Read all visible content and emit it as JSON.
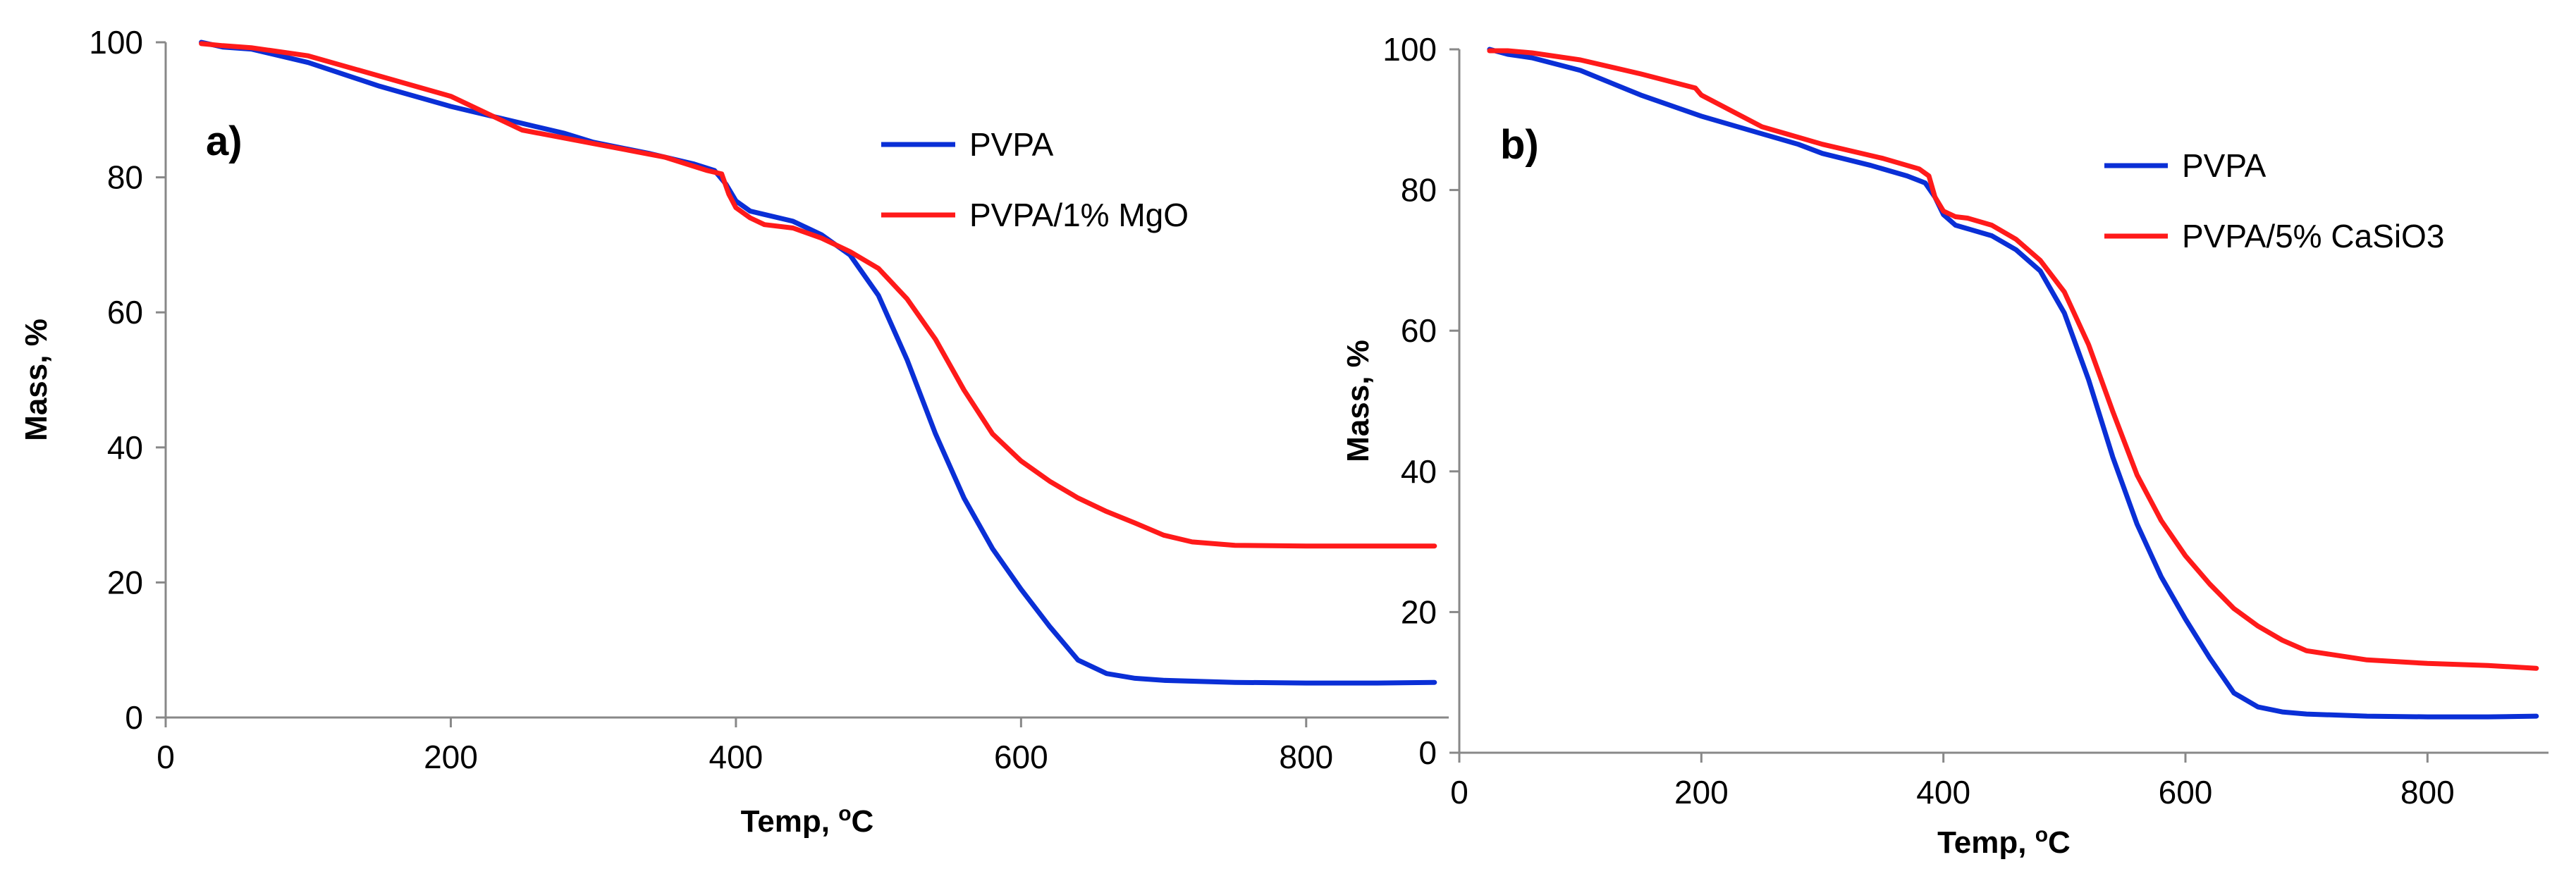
{
  "chart_data": [
    {
      "type": "line",
      "panel_label": "a)",
      "xlabel": "Temp, ",
      "xlabel_sup": "o",
      "xlabel_unit": "C",
      "ylabel": "Mass, %",
      "xlim": [
        0,
        900
      ],
      "ylim": [
        0,
        100
      ],
      "xticks": [
        0,
        200,
        400,
        600,
        800
      ],
      "yticks": [
        0,
        20,
        40,
        60,
        80,
        100
      ],
      "legend_position": "top-right",
      "series": [
        {
          "name": "PVPA",
          "color": "#0A2FD6",
          "x": [
            25,
            40,
            60,
            100,
            150,
            200,
            250,
            280,
            300,
            340,
            370,
            385,
            393,
            400,
            410,
            420,
            440,
            460,
            480,
            500,
            520,
            540,
            560,
            580,
            600,
            620,
            640,
            660,
            680,
            700,
            750,
            800,
            850,
            890
          ],
          "y": [
            100,
            99.3,
            99,
            97,
            93.5,
            90.5,
            88,
            86.5,
            85.2,
            83.5,
            82,
            81,
            79,
            76.5,
            75,
            74.5,
            73.5,
            71.5,
            68.5,
            62.5,
            53,
            42,
            32.5,
            25,
            19,
            13.5,
            8.5,
            6.5,
            5.8,
            5.5,
            5.2,
            5.1,
            5.1,
            5.2
          ]
        },
        {
          "name": "PVPA/1% MgO",
          "color": "#FF1A1A",
          "x": [
            25,
            40,
            60,
            100,
            150,
            200,
            250,
            300,
            350,
            380,
            390,
            395,
            400,
            410,
            420,
            440,
            460,
            480,
            500,
            520,
            540,
            560,
            580,
            600,
            620,
            640,
            660,
            680,
            700,
            720,
            750,
            800,
            850,
            890
          ],
          "y": [
            99.8,
            99.5,
            99.2,
            98,
            95,
            92,
            87,
            85,
            83,
            81,
            80.5,
            77.5,
            75.5,
            74,
            73,
            72.5,
            71,
            69,
            66.5,
            62,
            56,
            48.5,
            42,
            38,
            35,
            32.5,
            30.5,
            28.8,
            27,
            26,
            25.5,
            25.4,
            25.4,
            25.4
          ]
        }
      ]
    },
    {
      "type": "line",
      "panel_label": "b)",
      "xlabel": "Temp, ",
      "xlabel_sup": "o",
      "xlabel_unit": "C",
      "ylabel": "Mass, %",
      "xlim": [
        0,
        900
      ],
      "ylim": [
        0,
        100
      ],
      "xticks": [
        0,
        200,
        400,
        600,
        800
      ],
      "yticks": [
        0,
        20,
        40,
        60,
        80,
        100
      ],
      "legend_position": "top-right",
      "series": [
        {
          "name": "PVPA",
          "color": "#0A2FD6",
          "x": [
            25,
            40,
            60,
            100,
            150,
            200,
            250,
            280,
            300,
            340,
            370,
            385,
            393,
            400,
            410,
            420,
            440,
            460,
            480,
            500,
            520,
            540,
            560,
            580,
            600,
            620,
            640,
            660,
            680,
            700,
            750,
            800,
            850,
            890
          ],
          "y": [
            100,
            99.3,
            98.8,
            97,
            93.5,
            90.5,
            88,
            86.5,
            85.2,
            83.5,
            82,
            81,
            79,
            76.5,
            75,
            74.5,
            73.5,
            71.5,
            68.5,
            62.5,
            53,
            42,
            32.5,
            25,
            19,
            13.5,
            8.5,
            6.5,
            5.8,
            5.5,
            5.2,
            5.1,
            5.1,
            5.2
          ]
        },
        {
          "name": "PVPA/5% CaSiO3",
          "color": "#FF1A1A",
          "x": [
            25,
            40,
            60,
            100,
            150,
            195,
            200,
            250,
            300,
            350,
            380,
            388,
            393,
            400,
            410,
            420,
            440,
            460,
            480,
            500,
            520,
            540,
            560,
            580,
            600,
            620,
            640,
            660,
            680,
            700,
            750,
            800,
            850,
            890
          ],
          "y": [
            99.8,
            99.8,
            99.5,
            98.5,
            96.5,
            94.5,
            93.5,
            89,
            86.5,
            84.5,
            83,
            82,
            79,
            77,
            76.2,
            76,
            75,
            73,
            70,
            65.5,
            58,
            48.5,
            39.5,
            33,
            28,
            24,
            20.5,
            18,
            16,
            14.5,
            13.2,
            12.7,
            12.4,
            12
          ]
        }
      ]
    }
  ]
}
